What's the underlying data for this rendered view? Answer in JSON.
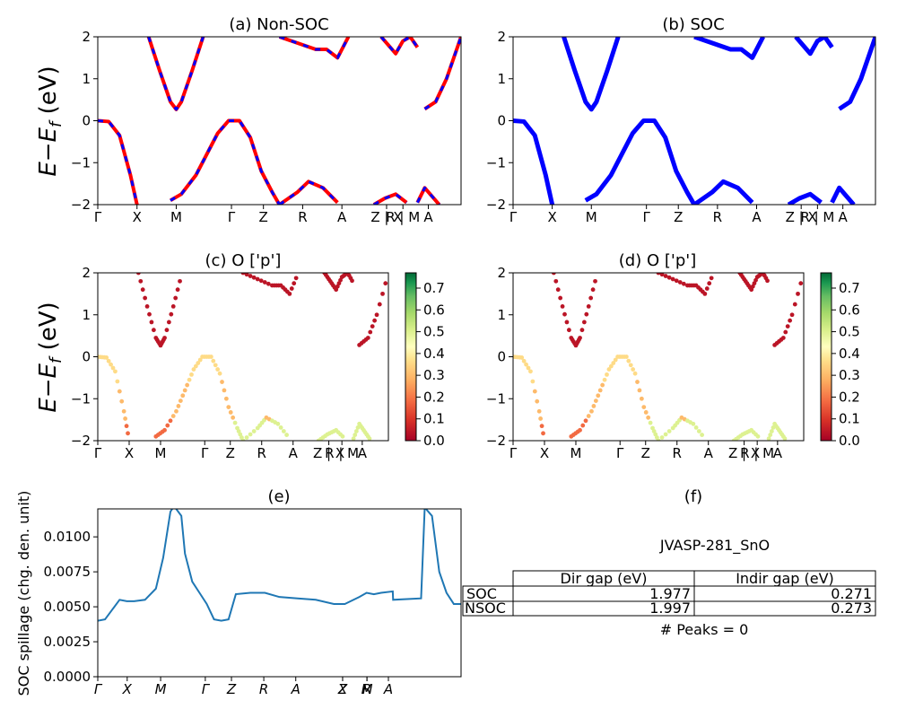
{
  "panels": {
    "a": {
      "title": "(a) Non-SOC"
    },
    "b": {
      "title": "(b) SOC"
    },
    "c": {
      "title": "(c)  O ['p']"
    },
    "d": {
      "title": "(d) O ['p']"
    },
    "e": {
      "title": "(e)"
    },
    "f": {
      "title": "(f)"
    }
  },
  "band_ylabel_parts": {
    "E": "E",
    "minus": "−",
    "E2": "E",
    "sub": "f",
    "unit": " (eV)"
  },
  "spillage_ylabel": "SOC spillage (chg. den. unit)",
  "kpath_labels": [
    {
      "k": 0.0,
      "label": "Γ"
    },
    {
      "k": 0.108,
      "label": "X"
    },
    {
      "k": 0.216,
      "label": "M"
    },
    {
      "k": 0.368,
      "label": "Γ"
    },
    {
      "k": 0.456,
      "label": "Z"
    },
    {
      "k": 0.564,
      "label": "R"
    },
    {
      "k": 0.672,
      "label": "A"
    },
    {
      "k": 0.795,
      "label": "Z | X"
    },
    {
      "k": 0.84,
      "label": "R | M"
    },
    {
      "k": 0.91,
      "label": "A"
    }
  ],
  "kpath_labels_cd": [
    {
      "k": 0.0,
      "label": "Γ"
    },
    {
      "k": 0.108,
      "label": "X"
    },
    {
      "k": 0.216,
      "label": "M"
    },
    {
      "k": 0.368,
      "label": "Γ"
    },
    {
      "k": 0.456,
      "label": "Z"
    },
    {
      "k": 0.564,
      "label": "R"
    },
    {
      "k": 0.672,
      "label": "A"
    },
    {
      "k": 0.795,
      "label": "Z | X"
    },
    {
      "k": 0.84,
      "label": "R | M"
    },
    {
      "k": 0.91,
      "label": "A"
    }
  ],
  "kpath_labels_e": [
    {
      "k": 0.0,
      "label": "Γ"
    },
    {
      "k": 0.081,
      "label": "X"
    },
    {
      "k": 0.173,
      "label": "M"
    },
    {
      "k": 0.296,
      "label": "Γ"
    },
    {
      "k": 0.368,
      "label": "Z"
    },
    {
      "k": 0.457,
      "label": "R"
    },
    {
      "k": 0.545,
      "label": "A"
    },
    {
      "k": 0.674,
      "label": "Z"
    },
    {
      "k": 0.674,
      "label": "X"
    },
    {
      "k": 0.741,
      "label": "R"
    },
    {
      "k": 0.741,
      "label": "M"
    },
    {
      "k": 0.8,
      "label": "A"
    }
  ],
  "colors": {
    "nsoc": "#ff0000",
    "soc": "#0000ff",
    "spillage": "#1f77b4"
  },
  "chart_data": [
    {
      "type": "line",
      "title": "(a) Non-SOC",
      "ylabel": "E − Ef (eV)",
      "xlim": [
        0,
        1
      ],
      "ylim": [
        -2,
        2
      ],
      "yticks": [
        -2,
        -1,
        0,
        1,
        2
      ],
      "series": [
        {
          "style": "solid red with dashed blue (SOC overlay)",
          "x": [
            0,
            0.03,
            0.06,
            0.09,
            0.108
          ],
          "y": [
            0,
            -0.02,
            -0.35,
            -1.3,
            -2.0
          ]
        },
        {
          "style": "valence band",
          "x": [
            0.2,
            0.23,
            0.27,
            0.3,
            0.33,
            0.36,
            0.39,
            0.42,
            0.45,
            0.48,
            0.5
          ],
          "y": [
            -1.9,
            -1.75,
            -1.3,
            -0.8,
            -0.3,
            0.0,
            0.0,
            -0.4,
            -1.2,
            -1.7,
            -2.0
          ]
        },
        {
          "style": "conduction band",
          "x": [
            0.14,
            0.17,
            0.2,
            0.216,
            0.23,
            0.26,
            0.29
          ],
          "y": [
            2.0,
            1.2,
            0.45,
            0.27,
            0.45,
            1.2,
            2.0
          ]
        },
        {
          "style": "conduction band",
          "x": [
            0.5,
            0.55,
            0.6,
            0.63,
            0.66,
            0.69
          ],
          "y": [
            2.0,
            1.85,
            1.7,
            1.7,
            1.5,
            2.0
          ]
        },
        {
          "style": "conduction band",
          "x": [
            0.78,
            0.8,
            0.82,
            0.84,
            0.86,
            0.88
          ],
          "y": [
            2.0,
            1.8,
            1.6,
            1.9,
            2.0,
            1.75
          ]
        },
        {
          "style": "conduction band",
          "x": [
            0.9,
            0.93,
            0.96,
            1.0
          ],
          "y": [
            0.28,
            0.45,
            1.0,
            2.0
          ]
        },
        {
          "style": "valence band",
          "x": [
            0.5,
            0.55,
            0.58,
            0.62,
            0.66
          ],
          "y": [
            -2.0,
            -1.7,
            -1.45,
            -1.6,
            -1.95
          ]
        },
        {
          "style": "valence band",
          "x": [
            0.76,
            0.79,
            0.82,
            0.85
          ],
          "y": [
            -2.0,
            -1.85,
            -1.75,
            -1.95
          ]
        },
        {
          "style": "valence band",
          "x": [
            0.88,
            0.9,
            0.92,
            0.94
          ],
          "y": [
            -1.95,
            -1.6,
            -1.8,
            -2.0
          ]
        }
      ]
    },
    {
      "type": "line",
      "title": "(b) SOC",
      "xlim": [
        0,
        1
      ],
      "ylim": [
        -2,
        2
      ],
      "yticks": [
        -2,
        -1,
        0,
        1,
        2
      ],
      "series": [
        {
          "x": [
            0,
            0.03,
            0.06,
            0.09,
            0.108
          ],
          "y": [
            0,
            -0.02,
            -0.35,
            -1.3,
            -2.0
          ]
        },
        {
          "x": [
            0.2,
            0.23,
            0.27,
            0.3,
            0.33,
            0.36,
            0.39,
            0.42,
            0.45,
            0.48,
            0.5
          ],
          "y": [
            -1.9,
            -1.75,
            -1.3,
            -0.8,
            -0.3,
            0.0,
            0.0,
            -0.4,
            -1.2,
            -1.7,
            -2.0
          ]
        },
        {
          "x": [
            0.14,
            0.17,
            0.2,
            0.216,
            0.23,
            0.26,
            0.29
          ],
          "y": [
            2.0,
            1.2,
            0.45,
            0.27,
            0.45,
            1.2,
            2.0
          ]
        },
        {
          "x": [
            0.5,
            0.55,
            0.6,
            0.63,
            0.66,
            0.69
          ],
          "y": [
            2.0,
            1.85,
            1.7,
            1.7,
            1.5,
            2.0
          ]
        },
        {
          "x": [
            0.78,
            0.8,
            0.82,
            0.84,
            0.86,
            0.88
          ],
          "y": [
            2.0,
            1.8,
            1.6,
            1.9,
            2.0,
            1.75
          ]
        },
        {
          "x": [
            0.9,
            0.93,
            0.96,
            1.0
          ],
          "y": [
            0.28,
            0.45,
            1.0,
            2.0
          ]
        },
        {
          "x": [
            0.5,
            0.55,
            0.58,
            0.62,
            0.66
          ],
          "y": [
            -2.0,
            -1.7,
            -1.45,
            -1.6,
            -1.95
          ]
        },
        {
          "x": [
            0.76,
            0.79,
            0.82,
            0.85
          ],
          "y": [
            -2.0,
            -1.85,
            -1.75,
            -1.95
          ]
        },
        {
          "x": [
            0.88,
            0.9,
            0.92,
            0.94
          ],
          "y": [
            -1.95,
            -1.6,
            -1.8,
            -2.0
          ]
        }
      ]
    },
    {
      "type": "scatter",
      "title": "(c)  O ['p']",
      "ylim": [
        -2,
        2
      ],
      "colorbar": {
        "min": 0.0,
        "max": 0.77,
        "ticks": [
          0.0,
          0.1,
          0.2,
          0.3,
          0.4,
          0.5,
          0.6,
          0.7
        ],
        "colormap": "RdYlGn"
      },
      "note": "points colored by O p-orbital weight"
    },
    {
      "type": "scatter",
      "title": "(d) O ['p']",
      "ylim": [
        -2,
        2
      ],
      "colorbar": {
        "min": 0.0,
        "max": 0.77,
        "ticks": [
          0.0,
          0.1,
          0.2,
          0.3,
          0.4,
          0.5,
          0.6,
          0.7
        ],
        "colormap": "RdYlGn"
      }
    },
    {
      "type": "line",
      "title": "(e)",
      "ylabel": "SOC spillage (chg. den. unit)",
      "xlim": [
        0,
        1
      ],
      "ylim": [
        0.0,
        0.012
      ],
      "yticks": [
        0.0,
        0.0025,
        0.005,
        0.0075,
        0.01
      ],
      "series": [
        {
          "x": [
            0.0,
            0.02,
            0.04,
            0.06,
            0.08,
            0.1,
            0.13,
            0.16,
            0.18,
            0.2,
            0.21,
            0.23,
            0.24,
            0.26,
            0.28,
            0.3,
            0.32,
            0.34,
            0.36,
            0.38,
            0.42,
            0.46,
            0.5,
            0.55,
            0.6,
            0.65,
            0.68,
            0.72,
            0.74,
            0.76,
            0.78,
            0.812,
            0.813,
            0.89,
            0.9,
            0.92,
            0.94,
            0.96,
            0.98,
            1.0
          ],
          "y": [
            0.004,
            0.0041,
            0.0048,
            0.0055,
            0.0054,
            0.0054,
            0.0055,
            0.0063,
            0.0085,
            0.0118,
            0.0122,
            0.0115,
            0.0088,
            0.0068,
            0.006,
            0.0052,
            0.0041,
            0.004,
            0.0041,
            0.0059,
            0.006,
            0.006,
            0.0057,
            0.0056,
            0.0055,
            0.0052,
            0.0052,
            0.0057,
            0.006,
            0.0059,
            0.006,
            0.0061,
            0.0055,
            0.0056,
            0.0121,
            0.0115,
            0.0075,
            0.006,
            0.0052,
            0.0052
          ]
        }
      ]
    }
  ],
  "table": {
    "caption": "JVASP-281_SnO",
    "col_headers": [
      "Dir gap (eV)",
      "Indir gap (eV)"
    ],
    "rows": [
      {
        "label": "SOC",
        "dir": "1.977",
        "indir": "0.271"
      },
      {
        "label": "NSOC",
        "dir": "1.997",
        "indir": "0.273"
      }
    ],
    "footer": "# Peaks = 0"
  }
}
